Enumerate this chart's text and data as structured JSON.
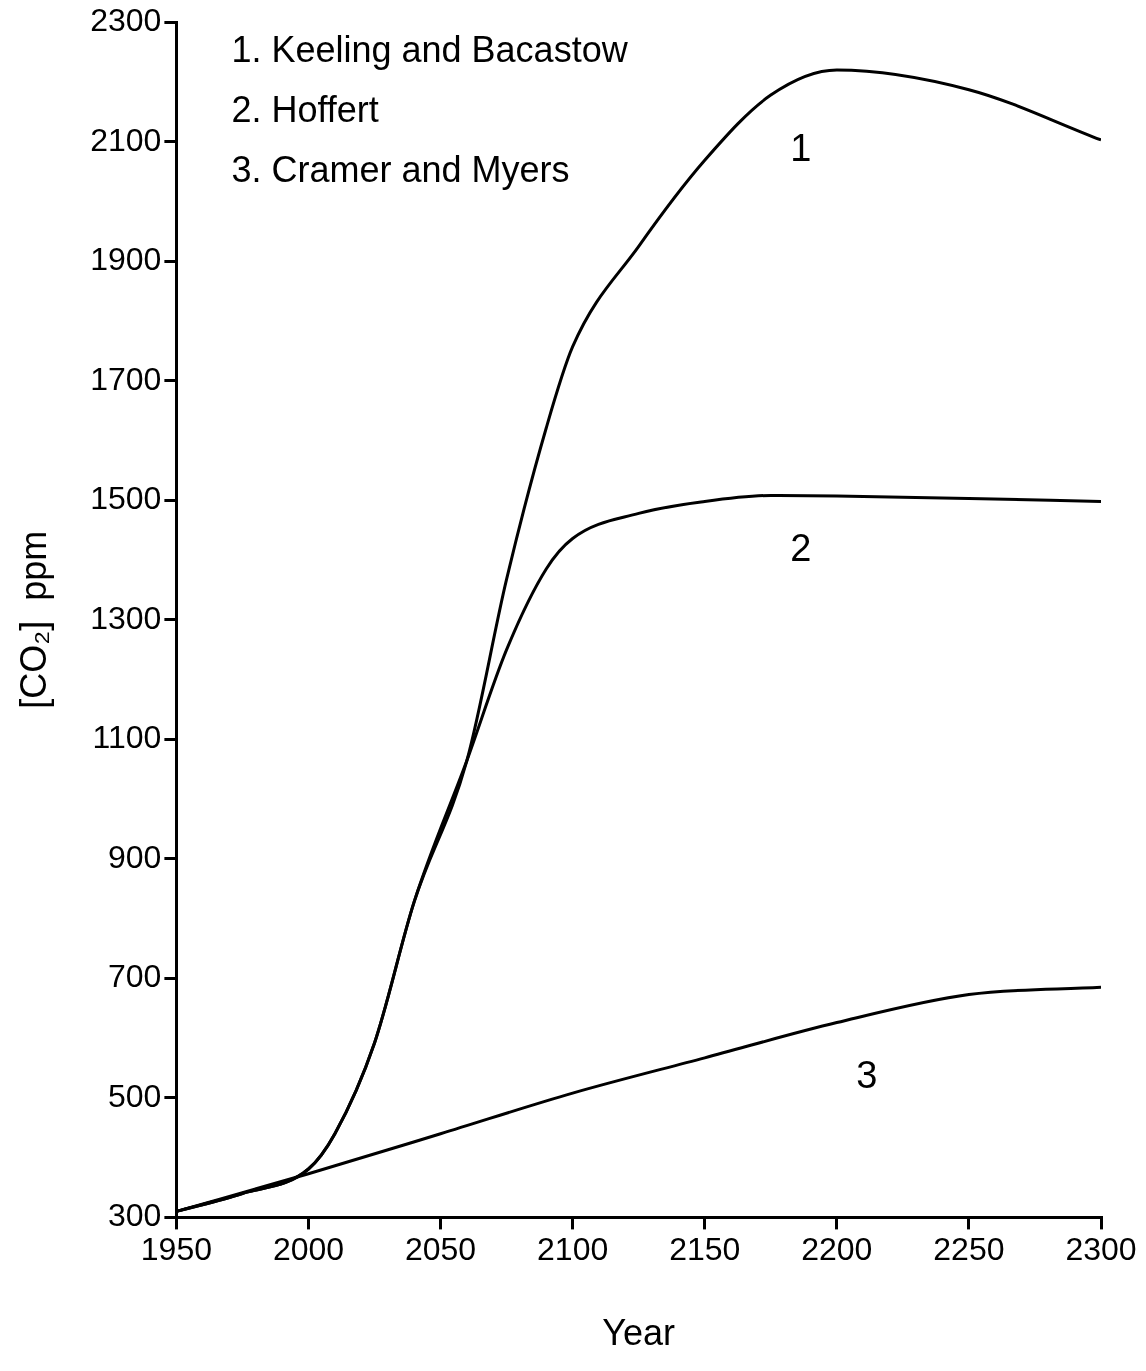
{
  "chart_data": {
    "type": "line",
    "xlabel": "Year",
    "ylabel": "[CO₂]  ppm",
    "xlim": [
      1950,
      2300
    ],
    "xticks": [
      1950,
      2000,
      2050,
      2100,
      2150,
      2200,
      2250,
      2300
    ],
    "ylim": [
      300,
      2300
    ],
    "yticks": [
      300,
      500,
      700,
      900,
      1100,
      1300,
      1500,
      1700,
      1900,
      2100,
      2300
    ],
    "grid": false,
    "legend": false,
    "marker": "none",
    "line_style": "solid",
    "annotations": [
      "1. Keeling and Bacastow",
      "2. Hoffert",
      "3. Cramer and Myers"
    ],
    "series": [
      {
        "name": "1",
        "color": "#000000",
        "x": [
          1950,
          1975,
          2000,
          2010,
          2025,
          2040,
          2060,
          2075,
          2090,
          2100,
          2125,
          2150,
          2175,
          2200,
          2250,
          2300
        ],
        "values": [
          310,
          340,
          381,
          440,
          592,
          828,
          1065,
          1368,
          1621,
          1757,
          1925,
          2069,
          2178,
          2220,
          2187,
          2103
        ]
      },
      {
        "name": "2",
        "color": "#000000",
        "x": [
          1950,
          1975,
          2000,
          2010,
          2025,
          2040,
          2060,
          2075,
          2090,
          2100,
          2125,
          2150,
          2175,
          2200,
          2250,
          2300
        ],
        "values": [
          310,
          340,
          381,
          440,
          592,
          828,
          1065,
          1250,
          1385,
          1436,
          1478,
          1498,
          1508,
          1507,
          1503,
          1498
        ]
      },
      {
        "name": "3",
        "color": "#000000",
        "x": [
          1950,
          2000,
          2050,
          2100,
          2150,
          2200,
          2250,
          2300
        ],
        "values": [
          310,
          373,
          440,
          508,
          567,
          626,
          673,
          685
        ]
      }
    ]
  }
}
